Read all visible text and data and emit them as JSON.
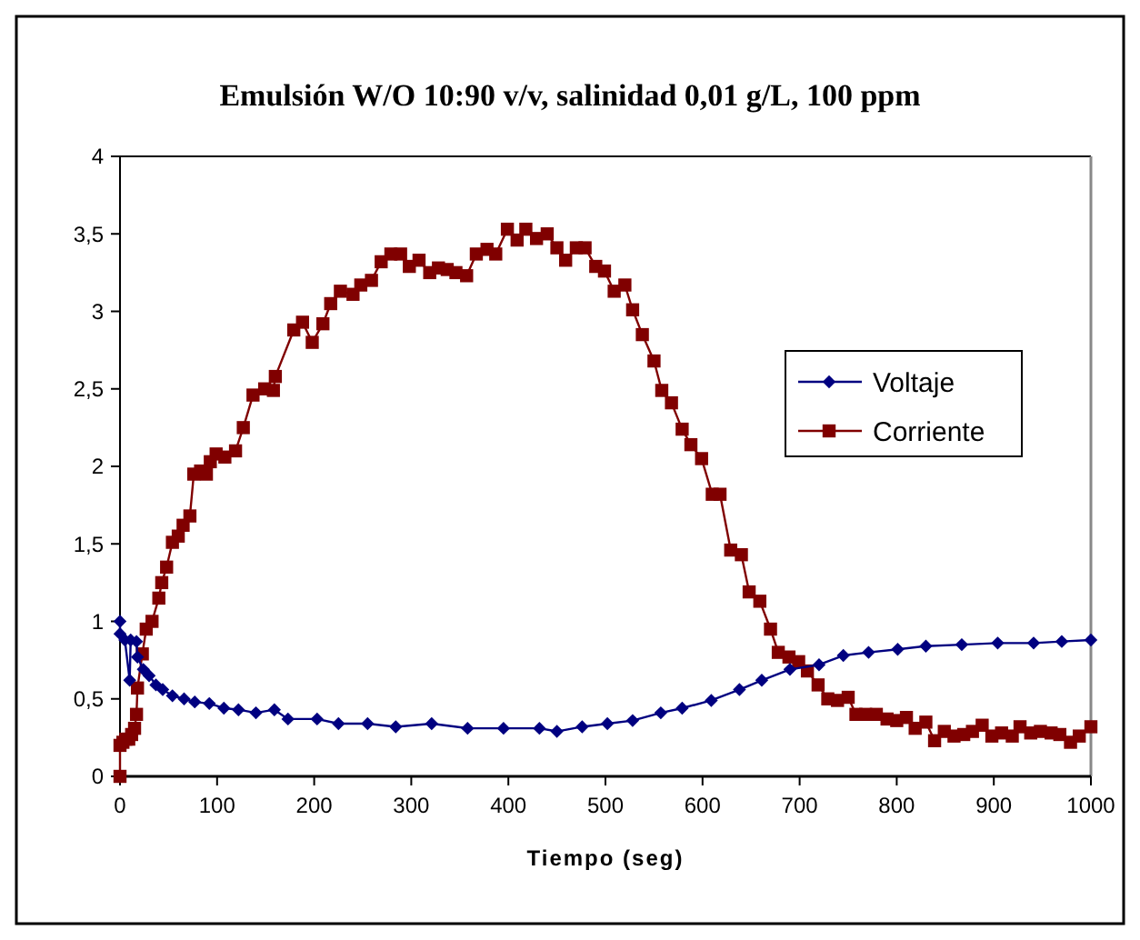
{
  "chart_data": {
    "type": "line",
    "title": "Emulsión W/O 10:90 v/v, salinidad 0,01 g/L, 100 ppm",
    "xlabel": "Tiempo (seg)",
    "xlim": [
      0,
      1000
    ],
    "xticks": [
      0,
      100,
      200,
      300,
      400,
      500,
      600,
      700,
      800,
      900,
      1000
    ],
    "ylim": [
      0,
      4
    ],
    "yticks": [
      0,
      {
        "value": 0.5,
        "label": "0,5"
      },
      1,
      {
        "value": 1.5,
        "label": "1,5"
      },
      2,
      {
        "value": 2.5,
        "label": "2,5"
      },
      3,
      {
        "value": 3.5,
        "label": "3,5"
      },
      4
    ],
    "grid": false,
    "legend": "right",
    "series": [
      {
        "name": "Voltaje",
        "color": "#000080",
        "marker": "diamond",
        "x": [
          0,
          0,
          5,
          10,
          11,
          17,
          18,
          24,
          30,
          37,
          44,
          54,
          66,
          77,
          92,
          107,
          122,
          140,
          159,
          173,
          203,
          225,
          255,
          284,
          321,
          358,
          395,
          432,
          450,
          476,
          502,
          528,
          557,
          579,
          609,
          638,
          661,
          690,
          720,
          745,
          771,
          801,
          830,
          867,
          904,
          941,
          970,
          1000
        ],
        "values": [
          1.0,
          0.92,
          0.88,
          0.62,
          0.88,
          0.87,
          0.77,
          0.69,
          0.65,
          0.59,
          0.56,
          0.52,
          0.5,
          0.48,
          0.47,
          0.44,
          0.43,
          0.41,
          0.43,
          0.37,
          0.37,
          0.34,
          0.34,
          0.32,
          0.34,
          0.31,
          0.31,
          0.31,
          0.29,
          0.32,
          0.34,
          0.36,
          0.41,
          0.44,
          0.49,
          0.56,
          0.62,
          0.69,
          0.72,
          0.78,
          0.8,
          0.82,
          0.84,
          0.85,
          0.86,
          0.86,
          0.87,
          0.88
        ]
      },
      {
        "name": "Corriente",
        "color": "#800000",
        "marker": "square",
        "x": [
          0,
          0,
          3,
          6,
          9,
          12,
          15,
          17,
          18,
          23,
          27,
          33,
          40,
          43,
          48,
          54,
          60,
          65,
          72,
          76,
          83,
          89,
          93,
          99,
          108,
          119,
          127,
          137,
          149,
          158,
          160,
          179,
          188,
          198,
          209,
          217,
          227,
          240,
          248,
          259,
          269,
          279,
          289,
          298,
          308,
          319,
          328,
          337,
          346,
          357,
          367,
          378,
          387,
          399,
          409,
          418,
          429,
          440,
          450,
          459,
          470,
          479,
          490,
          499,
          509,
          520,
          528,
          538,
          550,
          558,
          568,
          579,
          588,
          599,
          610,
          618,
          629,
          640,
          648,
          659,
          670,
          678,
          689,
          699,
          708,
          719,
          729,
          739,
          750,
          758,
          768,
          779,
          790,
          800,
          810,
          819,
          830,
          839,
          849,
          859,
          869,
          878,
          888,
          898,
          908,
          919,
          927,
          938,
          948,
          959,
          968,
          979,
          988,
          1000
        ],
        "values": [
          0,
          0.2,
          0.22,
          0.24,
          0.24,
          0.27,
          0.31,
          0.4,
          0.57,
          0.79,
          0.95,
          1.0,
          1.15,
          1.25,
          1.35,
          1.51,
          1.55,
          1.62,
          1.68,
          1.95,
          1.97,
          1.95,
          2.03,
          2.08,
          2.06,
          2.1,
          2.25,
          2.46,
          2.5,
          2.49,
          2.58,
          2.88,
          2.93,
          2.8,
          2.92,
          3.05,
          3.13,
          3.11,
          3.17,
          3.2,
          3.32,
          3.37,
          3.37,
          3.29,
          3.33,
          3.25,
          3.28,
          3.27,
          3.25,
          3.23,
          3.37,
          3.4,
          3.37,
          3.53,
          3.46,
          3.53,
          3.47,
          3.5,
          3.41,
          3.33,
          3.41,
          3.41,
          3.29,
          3.26,
          3.13,
          3.17,
          3.01,
          2.85,
          2.68,
          2.49,
          2.41,
          2.24,
          2.14,
          2.05,
          1.82,
          1.82,
          1.46,
          1.43,
          1.19,
          1.13,
          0.95,
          0.8,
          0.77,
          0.74,
          0.68,
          0.59,
          0.5,
          0.49,
          0.51,
          0.4,
          0.4,
          0.4,
          0.37,
          0.36,
          0.38,
          0.31,
          0.35,
          0.23,
          0.29,
          0.26,
          0.27,
          0.29,
          0.33,
          0.26,
          0.28,
          0.26,
          0.32,
          0.28,
          0.29,
          0.28,
          0.27,
          0.22,
          0.26,
          0.32
        ]
      }
    ]
  }
}
